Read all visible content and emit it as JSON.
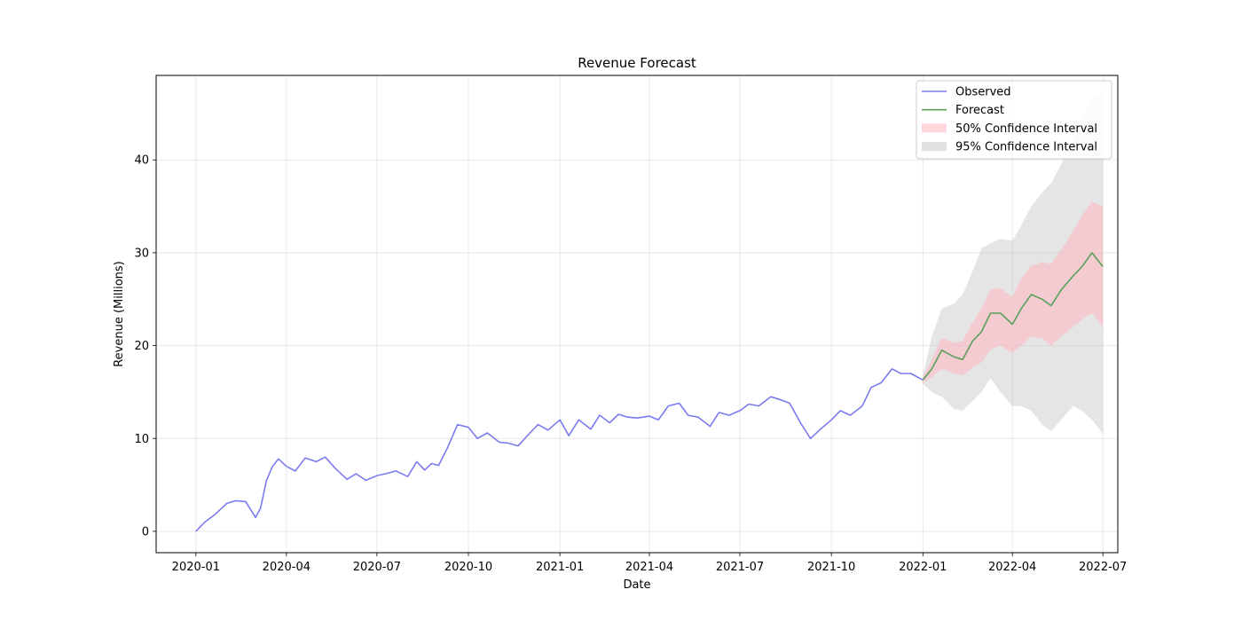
{
  "chart_data": {
    "type": "line",
    "title": "Revenue Forecast",
    "xlabel": "Date",
    "ylabel": "Revenue (Millions)",
    "xlim": [
      "2019-11-22",
      "2022-07-16"
    ],
    "ylim": [
      -2.3,
      49.1
    ],
    "x_ticks": [
      "2020-01",
      "2020-04",
      "2020-07",
      "2020-10",
      "2021-01",
      "2021-04",
      "2021-07",
      "2021-10",
      "2022-01",
      "2022-04",
      "2022-07"
    ],
    "y_ticks": [
      0,
      10,
      20,
      30,
      40
    ],
    "grid": true,
    "legend_position": "top-right",
    "legend": [
      "Observed",
      "Forecast",
      "50% Confidence Interval",
      "95% Confidence Interval"
    ],
    "colors": {
      "observed": "#7b7bf0",
      "forecast": "#5aa05a",
      "ci50": "#ffb6c1",
      "ci95": "#bdbdbd"
    },
    "observed": {
      "name": "Observed",
      "x": [
        "2020-01-01",
        "2020-01-10",
        "2020-01-20",
        "2020-02-01",
        "2020-02-10",
        "2020-02-20",
        "2020-03-01",
        "2020-03-06",
        "2020-03-12",
        "2020-03-18",
        "2020-03-24",
        "2020-04-01",
        "2020-04-10",
        "2020-04-20",
        "2020-05-01",
        "2020-05-10",
        "2020-05-20",
        "2020-06-01",
        "2020-06-10",
        "2020-06-20",
        "2020-07-01",
        "2020-07-10",
        "2020-07-20",
        "2020-08-01",
        "2020-08-10",
        "2020-08-18",
        "2020-08-25",
        "2020-09-01",
        "2020-09-10",
        "2020-09-20",
        "2020-10-01",
        "2020-10-10",
        "2020-10-20",
        "2020-11-01",
        "2020-11-10",
        "2020-11-20",
        "2020-12-01",
        "2020-12-10",
        "2020-12-20",
        "2021-01-01",
        "2021-01-10",
        "2021-01-20",
        "2021-02-01",
        "2021-02-10",
        "2021-02-20",
        "2021-03-01",
        "2021-03-10",
        "2021-03-20",
        "2021-04-01",
        "2021-04-10",
        "2021-04-20",
        "2021-05-01",
        "2021-05-10",
        "2021-05-20",
        "2021-06-01",
        "2021-06-10",
        "2021-06-20",
        "2021-07-01",
        "2021-07-10",
        "2021-07-20",
        "2021-08-01",
        "2021-08-10",
        "2021-08-20",
        "2021-09-01",
        "2021-09-10",
        "2021-09-20",
        "2021-10-01",
        "2021-10-10",
        "2021-10-20",
        "2021-11-01",
        "2021-11-10",
        "2021-11-20",
        "2021-12-01",
        "2021-12-10",
        "2021-12-20",
        "2022-01-01"
      ],
      "values": [
        0.0,
        1.0,
        1.8,
        3.0,
        3.3,
        3.2,
        1.5,
        2.5,
        5.5,
        7.0,
        7.8,
        7.0,
        6.5,
        7.9,
        7.5,
        8.0,
        6.8,
        5.6,
        6.2,
        5.5,
        6.0,
        6.2,
        6.5,
        5.9,
        7.5,
        6.6,
        7.3,
        7.1,
        9.0,
        11.5,
        11.2,
        10.0,
        10.6,
        9.6,
        9.5,
        9.2,
        10.5,
        11.5,
        10.9,
        12.0,
        10.3,
        12.0,
        11.0,
        12.5,
        11.7,
        12.6,
        12.3,
        12.2,
        12.4,
        12.0,
        13.5,
        13.8,
        12.5,
        12.3,
        11.3,
        12.8,
        12.5,
        13.0,
        13.7,
        13.5,
        14.5,
        14.2,
        13.8,
        11.5,
        10.0,
        11.0,
        12.0,
        13.0,
        12.5,
        13.5,
        15.5,
        16.0,
        17.5,
        17.0,
        17.0,
        16.3
      ]
    },
    "forecast": {
      "name": "Forecast",
      "x": [
        "2022-01-01",
        "2022-01-10",
        "2022-01-20",
        "2022-02-01",
        "2022-02-10",
        "2022-02-20",
        "2022-03-01",
        "2022-03-10",
        "2022-03-20",
        "2022-04-01",
        "2022-04-10",
        "2022-04-20",
        "2022-05-01",
        "2022-05-10",
        "2022-05-20",
        "2022-06-01",
        "2022-06-10",
        "2022-06-20",
        "2022-07-01"
      ],
      "values": [
        16.3,
        17.5,
        19.5,
        18.8,
        18.5,
        20.5,
        21.5,
        23.5,
        23.5,
        22.3,
        24.0,
        25.5,
        25.0,
        24.3,
        26.0,
        27.5,
        28.5,
        30.0,
        28.5
      ],
      "ci50_low": [
        16.0,
        16.6,
        17.5,
        17.0,
        16.8,
        17.6,
        18.2,
        19.6,
        20.0,
        19.2,
        20.0,
        21.0,
        20.8,
        20.0,
        21.0,
        22.0,
        22.8,
        23.5,
        22.0
      ],
      "ci50_high": [
        16.6,
        18.5,
        20.8,
        20.3,
        20.5,
        22.5,
        24.0,
        26.0,
        26.2,
        25.2,
        27.3,
        28.6,
        29.0,
        28.8,
        30.3,
        32.3,
        34.0,
        35.5,
        35.0
      ],
      "ci95_low": [
        15.9,
        15.0,
        14.5,
        13.2,
        13.0,
        14.0,
        15.0,
        16.5,
        15.0,
        13.5,
        13.5,
        13.0,
        11.5,
        10.8,
        12.0,
        13.5,
        13.0,
        12.0,
        10.5
      ],
      "ci95_high": [
        16.8,
        21.0,
        24.0,
        24.5,
        25.5,
        28.0,
        30.5,
        31.0,
        31.5,
        31.3,
        33.0,
        35.0,
        36.5,
        37.5,
        39.5,
        42.0,
        44.5,
        46.5,
        47.0
      ]
    }
  }
}
